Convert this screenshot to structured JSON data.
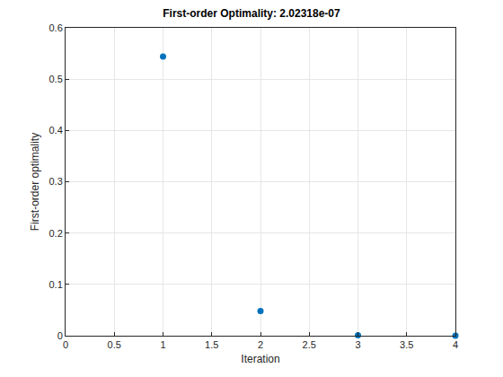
{
  "chart_data": {
    "type": "scatter",
    "title": "First-order Optimality: 2.02318e-07",
    "x_label": "Iteration",
    "y_label": "First-order optimality",
    "x": [
      1,
      2,
      3,
      4
    ],
    "values": [
      0.544,
      0.048,
      0.0008,
      2.02318e-07
    ],
    "color": "#0072bd",
    "marker": "circle",
    "xlim": [
      0,
      4
    ],
    "xticks": [
      0,
      0.5,
      1,
      1.5,
      2,
      2.5,
      3,
      3.5,
      4
    ],
    "ylim": [
      0,
      0.6
    ],
    "yticks": [
      0,
      0.1,
      0.2,
      0.3,
      0.4,
      0.5,
      0.6
    ],
    "grid": true
  }
}
